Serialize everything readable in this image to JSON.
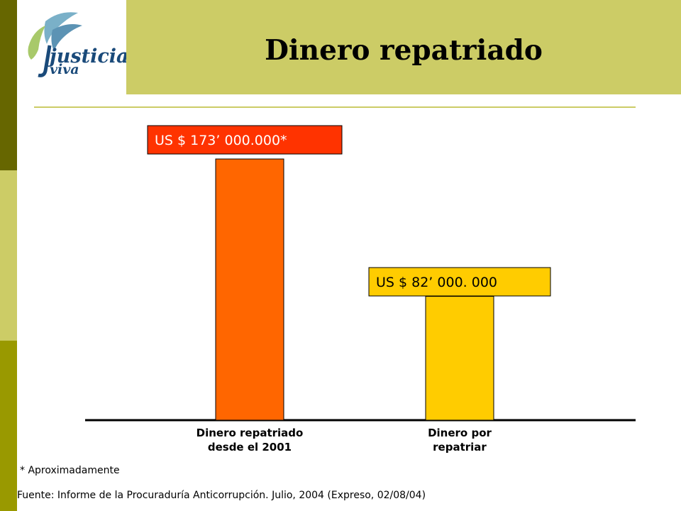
{
  "slide": {
    "title": "Dinero repatriado",
    "footnote": "* Aproximadamente",
    "source": "Fuente: Informe de la Procuraduría Anticorrupción. Julio, 2004 (Expreso, 02/08/04)"
  },
  "logo": {
    "line1": "justicia",
    "line2": "viva"
  },
  "colors": {
    "stripe_dark": "#666600",
    "stripe_light": "#cccc66",
    "stripe_mid": "#999900",
    "title_bar": "#cccc66",
    "bar1": "#ff6600",
    "bar2": "#ffcc00",
    "label1_bg": "#ff3300",
    "label2_bg": "#ffcc00"
  },
  "chart_data": {
    "type": "bar",
    "categories": [
      [
        "Dinero repatriado",
        "desde el 2001"
      ],
      [
        "Dinero por",
        "repatriar"
      ]
    ],
    "values": [
      173000000,
      82000000
    ],
    "data_labels": [
      "US $ 173’ 000.000*",
      "US $ 82’ 000. 000"
    ],
    "bar_colors": [
      "#ff6600",
      "#ffcc00"
    ],
    "ylim": [
      0,
      173000000
    ],
    "grid": false,
    "legend": "none",
    "xlabel": "",
    "ylabel": ""
  }
}
